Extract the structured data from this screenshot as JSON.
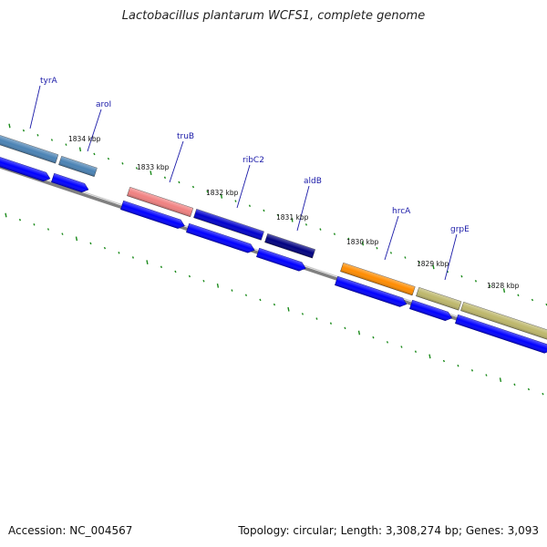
{
  "title": "Lactobacillus plantarum WCFS1, complete genome",
  "footer": {
    "accession": "Accession: NC_004567",
    "summary": "Topology: circular; Length: 3,308,274 bp; Genes: 3,093"
  },
  "kbp_labels": [
    "1834 kbp",
    "1833 kbp",
    "1832 kbp",
    "1831 kbp",
    "1830 kbp",
    "1829 kbp",
    "1828 kbp"
  ],
  "genes": [
    {
      "name": "tyrA",
      "color": "#4a82b4"
    },
    {
      "name": "aroI",
      "color": "#4a82b4"
    },
    {
      "name": "truB",
      "color": "#f08080"
    },
    {
      "name": "ribC2",
      "color": "#0000cd"
    },
    {
      "name": "aldB",
      "color": "#000080"
    },
    {
      "name": "hrcA",
      "color": "#ff8c00"
    },
    {
      "name": "grpE",
      "color": "#bdb76b"
    },
    {
      "name": "",
      "color": "#bdb76b"
    }
  ],
  "colors": {
    "cds": "#0000ff",
    "backbone": "#808080",
    "tick": "#1a8a1a",
    "label": "#1a1aa8"
  }
}
